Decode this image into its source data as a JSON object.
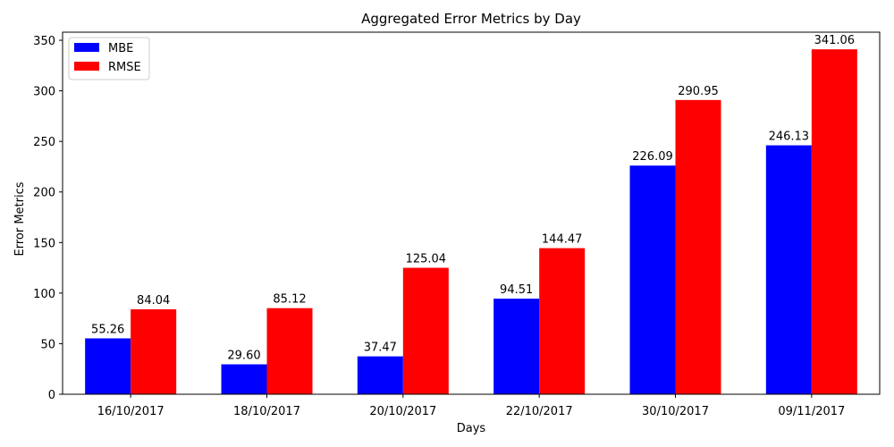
{
  "chart_data": {
    "type": "bar",
    "title": "Aggregated Error Metrics by Day",
    "xlabel": "Days",
    "ylabel": "Error Metrics",
    "categories": [
      "16/10/2017",
      "18/10/2017",
      "20/10/2017",
      "22/10/2017",
      "30/10/2017",
      "09/11/2017"
    ],
    "series": [
      {
        "name": "MBE",
        "color": "#0000ff",
        "values": [
          55.26,
          29.6,
          37.47,
          94.51,
          226.09,
          246.13
        ],
        "labels": [
          "55.26",
          "29.60",
          "37.47",
          "94.51",
          "226.09",
          "246.13"
        ]
      },
      {
        "name": "RMSE",
        "color": "#ff0000",
        "values": [
          84.04,
          85.12,
          125.04,
          144.47,
          290.95,
          341.06
        ],
        "labels": [
          "84.04",
          "85.12",
          "125.04",
          "144.47",
          "290.95",
          "341.06"
        ]
      }
    ],
    "ylim": [
      0,
      358
    ],
    "yticks": [
      0,
      50,
      100,
      150,
      200,
      250,
      300,
      350
    ],
    "grid": false,
    "legend": "top-left"
  }
}
